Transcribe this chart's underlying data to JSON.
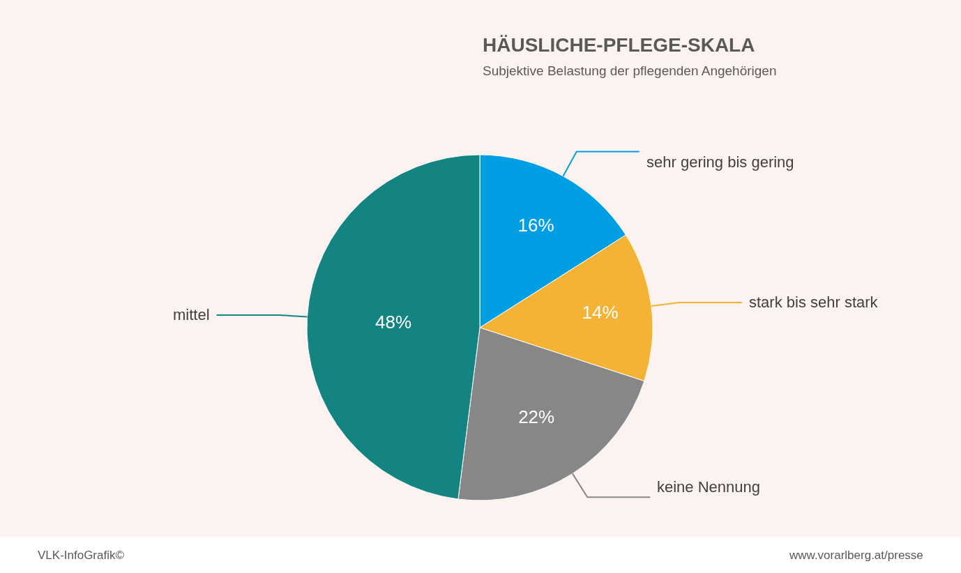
{
  "chart_data": {
    "type": "pie",
    "title": "HÄUSLICHE-PFLEGE-SKALA",
    "subtitle": "Subjektive Belastung der pflegenden Angehörigen",
    "categories": [
      "sehr gering bis gering",
      "stark bis sehr stark",
      "keine Nennung",
      "mittel"
    ],
    "values": [
      16,
      14,
      22,
      48
    ],
    "colors": [
      "#009fe3",
      "#f5b335",
      "#878787",
      "#138482"
    ],
    "value_labels": [
      "16%",
      "14%",
      "22%",
      "48%"
    ],
    "annotations": [
      "VLK-InfoGrafik©",
      "www.vorarlberg.at/presse"
    ],
    "legend": false
  }
}
